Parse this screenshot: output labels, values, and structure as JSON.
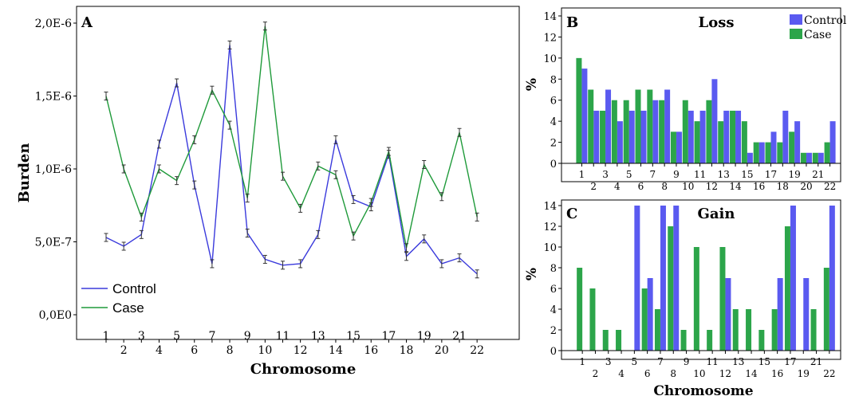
{
  "colors": {
    "control": "#3a3adc",
    "case": "#1f9a3a",
    "axis": "#000000"
  },
  "chart_data": [
    {
      "panel": "A",
      "type": "line",
      "xlabel": "Chromosome",
      "ylabel": "Burden",
      "x": [
        1,
        2,
        3,
        4,
        5,
        6,
        7,
        8,
        9,
        10,
        11,
        12,
        13,
        14,
        15,
        16,
        17,
        18,
        19,
        20,
        21,
        22
      ],
      "x_tick_labels": [
        "1",
        "2",
        "3",
        "4",
        "5",
        "6",
        "7",
        "8",
        "9",
        "10",
        "11",
        "12",
        "13",
        "14",
        "15",
        "16",
        "17",
        "18",
        "19",
        "20",
        "21",
        "22"
      ],
      "y_tick_labels": [
        "0,0E0",
        "5,0E-7",
        "1,0E-6",
        "1,5E-6",
        "2,0E-6"
      ],
      "ylim": [
        0,
        2e-06
      ],
      "legend_position": "bottom-left",
      "error_bars": true,
      "series": [
        {
          "name": "Control",
          "color": "#3a3adc",
          "values": [
            5.3e-07,
            4.7e-07,
            5.5e-07,
            1.17e-06,
            1.59e-06,
            8.9e-07,
            3.5e-07,
            1.85e-06,
            5.6e-07,
            3.8e-07,
            3.4e-07,
            3.5e-07,
            5.5e-07,
            1.2e-06,
            7.9e-07,
            7.4e-07,
            1.1e-06,
            4e-07,
            5.2e-07,
            3.5e-07,
            3.9e-07,
            2.8e-07
          ]
        },
        {
          "name": "Case",
          "color": "#1f9a3a",
          "values": [
            1.5e-06,
            1e-06,
            6.7e-07,
            1e-06,
            9.2e-07,
            1.2e-06,
            1.54e-06,
            1.3e-06,
            8e-07,
            1.98e-06,
            9.5e-07,
            7.3e-07,
            1.02e-06,
            9.6e-07,
            5.4e-07,
            7.7e-07,
            1.12e-06,
            4.6e-07,
            1.03e-06,
            8.1e-07,
            1.25e-06,
            6.7e-07
          ]
        }
      ]
    },
    {
      "panel": "B",
      "type": "bar",
      "title": "Loss",
      "ylabel": "%",
      "categories": [
        "1",
        "2",
        "3",
        "4",
        "5",
        "6",
        "7",
        "8",
        "9",
        "10",
        "11",
        "12",
        "13",
        "14",
        "15",
        "16",
        "17",
        "18",
        "19",
        "20",
        "21",
        "22"
      ],
      "y_tick_labels": [
        "0",
        "2",
        "4",
        "6",
        "8",
        "10",
        "12",
        "14"
      ],
      "ylim": [
        0,
        14
      ],
      "legend_position": "top-right",
      "series": [
        {
          "name": "Control",
          "color": "#5a5af0",
          "values": [
            9,
            5,
            7,
            4,
            5,
            5,
            6,
            7,
            3,
            5,
            5,
            8,
            5,
            5,
            1,
            2,
            3,
            5,
            4,
            1,
            1,
            4
          ]
        },
        {
          "name": "Case",
          "color": "#2ca54a",
          "values": [
            10,
            7,
            5,
            6,
            6,
            7,
            7,
            6,
            3,
            6,
            4,
            6,
            4,
            5,
            4,
            2,
            2,
            2,
            3,
            1,
            1,
            2
          ]
        }
      ]
    },
    {
      "panel": "C",
      "type": "bar",
      "title": "Gain",
      "ylabel": "%",
      "xlabel": "Chromosome",
      "categories": [
        "1",
        "2",
        "3",
        "4",
        "5",
        "6",
        "7",
        "8",
        "9",
        "10",
        "11",
        "12",
        "13",
        "14",
        "15",
        "16",
        "17",
        "19",
        "21",
        "22"
      ],
      "y_tick_labels": [
        "0",
        "2",
        "4",
        "6",
        "8",
        "10",
        "12",
        "14"
      ],
      "ylim": [
        0,
        14
      ],
      "series": [
        {
          "name": "Control",
          "color": "#5a5af0",
          "values": [
            0,
            0,
            0,
            0,
            14,
            7,
            14,
            14,
            0,
            0,
            0,
            7,
            0,
            0,
            0,
            7,
            14,
            7,
            0,
            14
          ]
        },
        {
          "name": "Case",
          "color": "#2ca54a",
          "values": [
            8,
            6,
            2,
            2,
            0,
            6,
            4,
            12,
            2,
            10,
            2,
            10,
            4,
            4,
            2,
            4,
            12,
            0,
            4,
            8
          ]
        }
      ]
    }
  ]
}
